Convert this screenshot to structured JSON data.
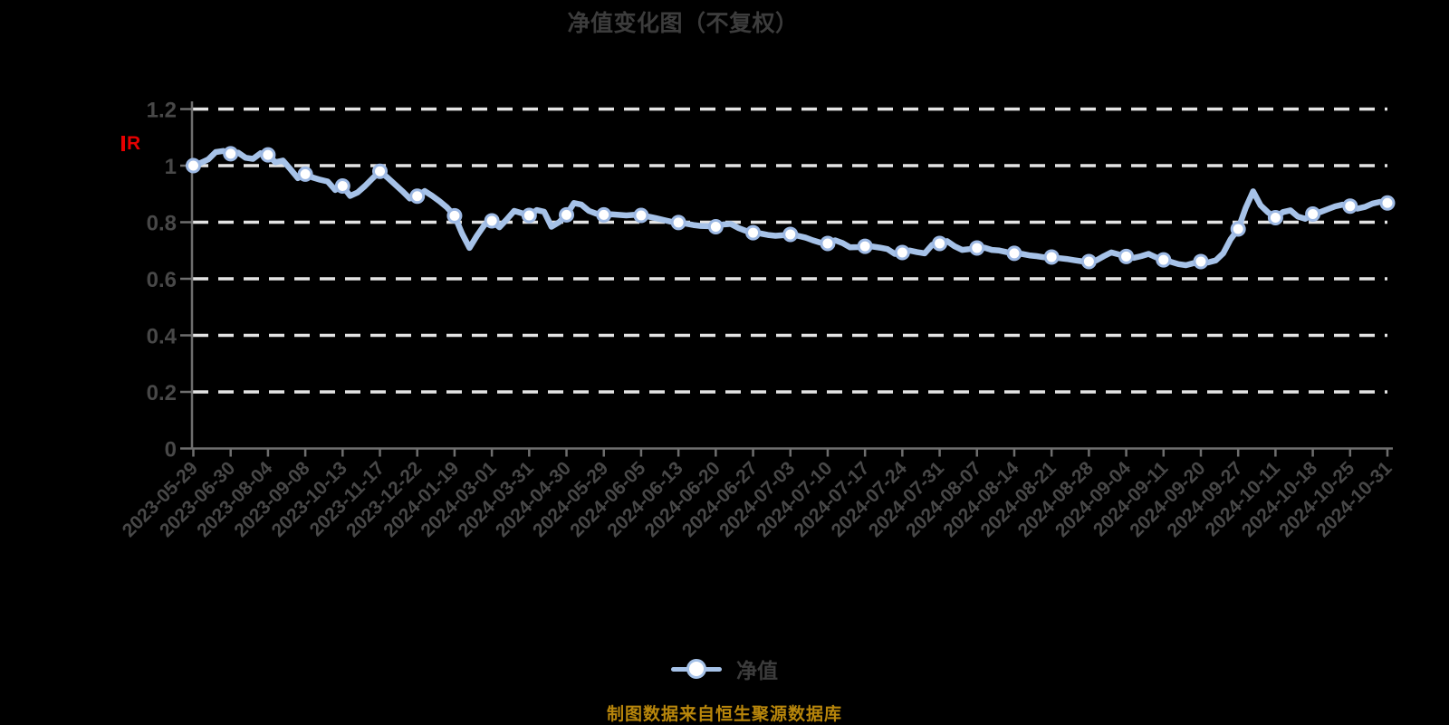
{
  "title": "净值变化图（不复权）",
  "y_axis_unit_glyph": "R",
  "legend": {
    "label": "净值"
  },
  "footer": "制图数据来自恒生聚源数据库",
  "colors": {
    "background": "#000000",
    "line": "#a6c2e8",
    "marker_fill": "#ffffff",
    "marker_stroke": "#9db9e4",
    "grid": "#e4e4e4",
    "axis": "#6e6e6e",
    "title_text": "#3c3c3c",
    "tick_text": "#484848",
    "legend_text": "#3c3c3c",
    "footer_text": "#b8860b",
    "unit_glyph": "#e60000"
  },
  "chart_data": {
    "type": "line",
    "title": "净值变化图（不复权）",
    "series_name": "净值",
    "legend_position": "bottom",
    "grid": "horizontal-dashed",
    "xlabel": "",
    "ylabel": "",
    "ylim": [
      0,
      1.2
    ],
    "ytick_values": [
      0,
      0.2,
      0.4,
      0.6,
      0.8,
      1,
      1.2
    ],
    "ytick_labels": [
      "0",
      "0.2",
      "0.4",
      "0.6",
      "0.8",
      "1",
      "1.2"
    ],
    "categories": [
      "2023-05-29",
      "2023-06-30",
      "2023-08-04",
      "2023-09-08",
      "2023-10-13",
      "2023-11-17",
      "2023-12-22",
      "2024-01-19",
      "2024-03-01",
      "2024-03-31",
      "2024-04-30",
      "2024-05-29",
      "2024-06-05",
      "2024-06-13",
      "2024-06-20",
      "2024-06-27",
      "2024-07-03",
      "2024-07-10",
      "2024-07-17",
      "2024-07-24",
      "2024-07-31",
      "2024-08-07",
      "2024-08-14",
      "2024-08-21",
      "2024-08-28",
      "2024-09-04",
      "2024-09-11",
      "2024-09-20",
      "2024-09-27",
      "2024-10-11",
      "2024-10-18",
      "2024-10-25",
      "2024-10-31"
    ],
    "values": [
      1.0,
      1.042,
      1.038,
      0.97,
      0.928,
      0.98,
      0.892,
      0.823,
      0.805,
      0.824,
      0.826,
      0.826,
      0.824,
      0.799,
      0.784,
      0.763,
      0.757,
      0.725,
      0.715,
      0.693,
      0.725,
      0.709,
      0.69,
      0.677,
      0.661,
      0.679,
      0.667,
      0.661,
      0.776,
      0.816,
      0.829,
      0.857,
      0.868
    ],
    "markers_every": 5,
    "dense_values": [
      1.0,
      1.01,
      1.022,
      1.048,
      1.052,
      1.042,
      1.046,
      1.028,
      1.024,
      1.044,
      1.038,
      1.012,
      1.018,
      0.988,
      0.956,
      0.97,
      0.958,
      0.95,
      0.944,
      0.914,
      0.928,
      0.893,
      0.905,
      0.928,
      0.955,
      0.98,
      0.958,
      0.934,
      0.91,
      0.884,
      0.892,
      0.91,
      0.893,
      0.874,
      0.852,
      0.823,
      0.76,
      0.709,
      0.752,
      0.79,
      0.805,
      0.782,
      0.81,
      0.84,
      0.832,
      0.824,
      0.843,
      0.837,
      0.784,
      0.8,
      0.826,
      0.868,
      0.862,
      0.84,
      0.83,
      0.826,
      0.828,
      0.826,
      0.824,
      0.826,
      0.824,
      0.82,
      0.814,
      0.808,
      0.802,
      0.799,
      0.795,
      0.79,
      0.787,
      0.786,
      0.784,
      0.792,
      0.794,
      0.78,
      0.77,
      0.763,
      0.76,
      0.755,
      0.752,
      0.754,
      0.757,
      0.752,
      0.746,
      0.736,
      0.728,
      0.725,
      0.736,
      0.726,
      0.711,
      0.712,
      0.715,
      0.714,
      0.71,
      0.705,
      0.688,
      0.693,
      0.7,
      0.694,
      0.69,
      0.72,
      0.725,
      0.733,
      0.715,
      0.702,
      0.705,
      0.709,
      0.71,
      0.702,
      0.7,
      0.694,
      0.69,
      0.688,
      0.683,
      0.68,
      0.676,
      0.677,
      0.673,
      0.67,
      0.666,
      0.662,
      0.661,
      0.665,
      0.68,
      0.693,
      0.686,
      0.679,
      0.674,
      0.68,
      0.688,
      0.676,
      0.667,
      0.66,
      0.652,
      0.648,
      0.655,
      0.661,
      0.658,
      0.665,
      0.69,
      0.74,
      0.776,
      0.85,
      0.909,
      0.86,
      0.835,
      0.816,
      0.836,
      0.842,
      0.82,
      0.812,
      0.829,
      0.836,
      0.846,
      0.856,
      0.862,
      0.857,
      0.848,
      0.854,
      0.866,
      0.872,
      0.868
    ]
  }
}
